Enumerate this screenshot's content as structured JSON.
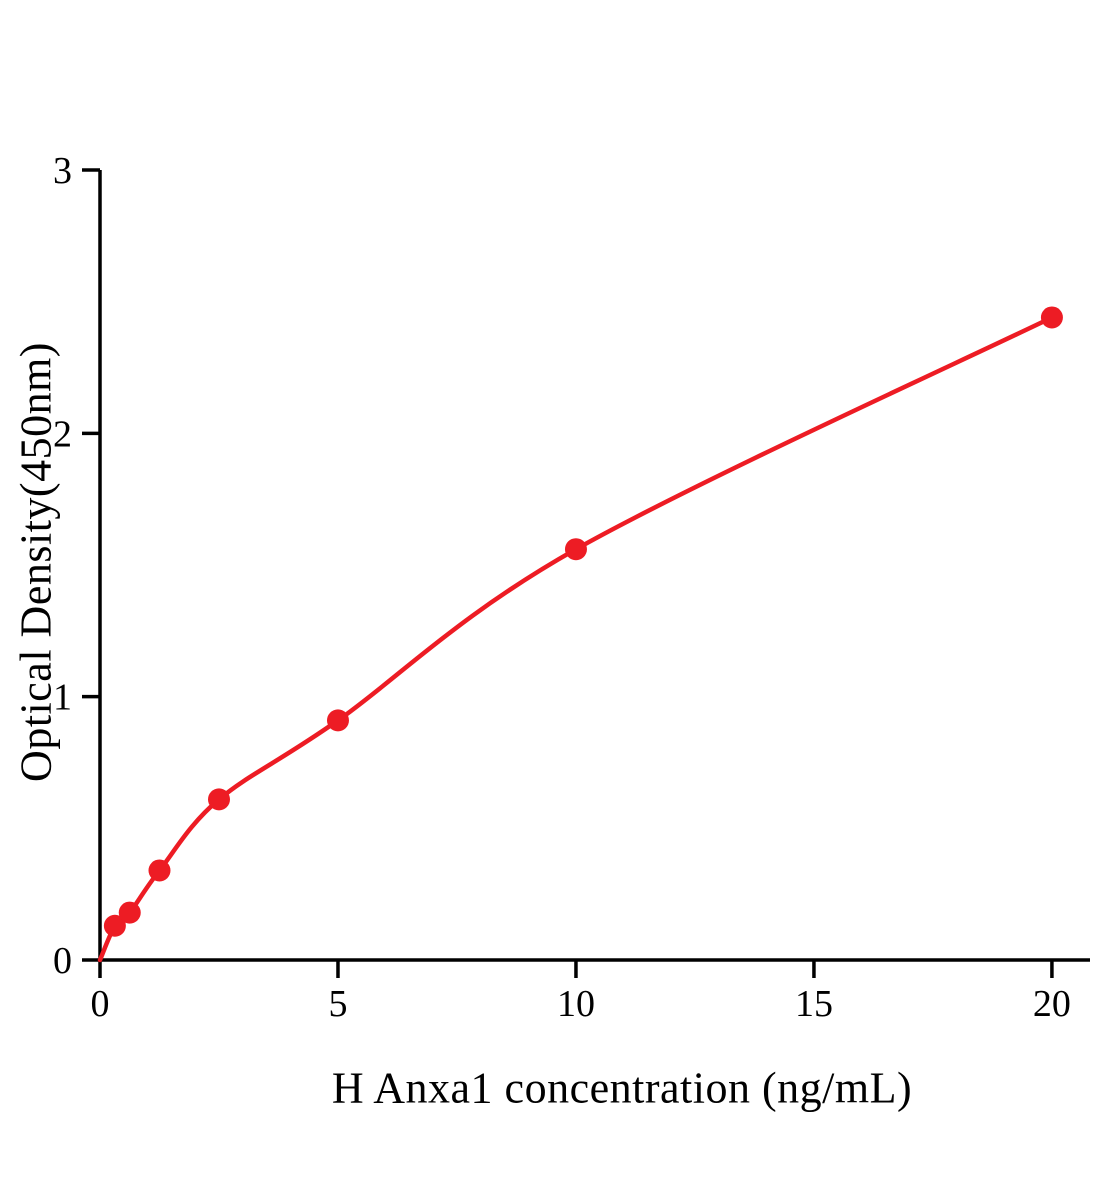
{
  "chart_data": {
    "type": "scatter",
    "title": "",
    "xlabel": "H Anxa1 concentration (ng/mL)",
    "ylabel": "Optical Density(450nm)",
    "x": [
      0.3125,
      0.625,
      1.25,
      2.5,
      5,
      10,
      20
    ],
    "y": [
      0.13,
      0.18,
      0.34,
      0.61,
      0.91,
      1.56,
      2.44
    ],
    "curve_through_origin": true,
    "xlim": [
      0,
      20.8
    ],
    "ylim": [
      0,
      3
    ],
    "xticks": [
      0,
      5,
      10,
      15,
      20
    ],
    "yticks": [
      0,
      1,
      2,
      3
    ],
    "xtick_labels": [
      "0",
      "5",
      "10",
      "15",
      "20"
    ],
    "ytick_labels": [
      "0",
      "1",
      "2",
      "3"
    ],
    "point_color": "#ed1c24",
    "line_color": "#ed1c24",
    "axis_color": "#000000",
    "grid": false,
    "legend": null
  }
}
